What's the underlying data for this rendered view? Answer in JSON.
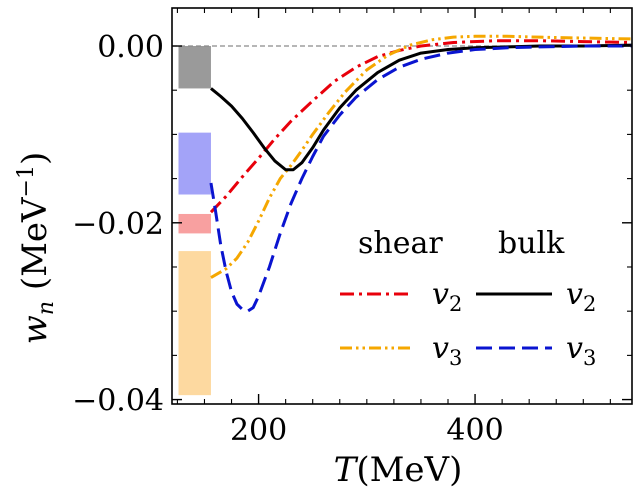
{
  "chart_data": {
    "type": "line",
    "xlabel": "T(MeV)",
    "ylabel": "w_n (MeV^-1)",
    "xlim": [
      120,
      545
    ],
    "ylim": [
      -0.0405,
      0.0043
    ],
    "xticks": [
      200,
      400
    ],
    "xtick_labels": [
      "200",
      "400"
    ],
    "yticks": [
      0.0,
      -0.02,
      -0.04
    ],
    "ytick_labels": [
      "0.00",
      "−0.02",
      "−0.04"
    ],
    "zero_line": true,
    "legend": {
      "placement": "lower-right",
      "headers": [
        "shear",
        "bulk"
      ],
      "entries": [
        {
          "series": "shear_v2",
          "label": "v2"
        },
        {
          "series": "bulk_v2",
          "label": "v2"
        },
        {
          "series": "shear_v3",
          "label": "v3"
        },
        {
          "series": "bulk_v3",
          "label": "v3"
        }
      ]
    },
    "bands": [
      {
        "name": "grey-band",
        "x": [
          126,
          156
        ],
        "y": [
          -0.0048,
          0.0
        ],
        "color": "#9a9a9a"
      },
      {
        "name": "blue-band",
        "x": [
          126,
          156
        ],
        "y": [
          -0.0168,
          -0.0098
        ],
        "color": "#a3a3f8"
      },
      {
        "name": "red-band",
        "x": [
          126,
          156
        ],
        "y": [
          -0.0212,
          -0.019
        ],
        "color": "#f8a0a0"
      },
      {
        "name": "orange-band",
        "x": [
          126,
          156
        ],
        "y": [
          -0.0395,
          -0.0232
        ],
        "color": "#fdd9a0"
      }
    ],
    "series": [
      {
        "key": "shear_v2",
        "name": "v2",
        "group": "shear",
        "color": "#e8000b",
        "dash": "dashdot",
        "x": [
          156,
          170,
          185,
          200,
          215,
          230,
          250,
          270,
          290,
          310,
          330,
          350,
          380,
          420,
          460,
          500,
          545
        ],
        "y": [
          -0.0188,
          -0.017,
          -0.0148,
          -0.0127,
          -0.0105,
          -0.0085,
          -0.0062,
          -0.004,
          -0.0024,
          -0.0012,
          -0.0005,
          0.0,
          0.0004,
          0.0006,
          0.0006,
          0.0005,
          0.0004
        ]
      },
      {
        "key": "shear_v3",
        "name": "v3",
        "group": "shear",
        "color": "#f5a700",
        "dash": "dashdotdot",
        "x": [
          156,
          170,
          180,
          190,
          200,
          210,
          220,
          230,
          240,
          250,
          265,
          280,
          300,
          320,
          340,
          360,
          380,
          400,
          430,
          460,
          500,
          545
        ],
        "y": [
          -0.0262,
          -0.0252,
          -0.024,
          -0.0222,
          -0.0198,
          -0.0172,
          -0.015,
          -0.0135,
          -0.0118,
          -0.01,
          -0.0075,
          -0.0052,
          -0.0027,
          -0.001,
          0.0001,
          0.0007,
          0.001,
          0.0011,
          0.0011,
          0.001,
          0.0009,
          0.0008
        ]
      },
      {
        "key": "bulk_v2",
        "name": "v2",
        "group": "bulk",
        "color": "#000000",
        "dash": "solid",
        "x": [
          156,
          165,
          175,
          185,
          195,
          205,
          215,
          225,
          232,
          240,
          250,
          260,
          275,
          290,
          310,
          330,
          350,
          375,
          400,
          430,
          460,
          500,
          545
        ],
        "y": [
          -0.0048,
          -0.0057,
          -0.0068,
          -0.0082,
          -0.0098,
          -0.0115,
          -0.013,
          -0.014,
          -0.014,
          -0.0132,
          -0.0115,
          -0.0095,
          -0.007,
          -0.005,
          -0.003,
          -0.0016,
          -0.0008,
          -0.0004,
          -0.0002,
          -0.0001,
          0.0,
          0.0,
          0.0001
        ]
      },
      {
        "key": "bulk_v3",
        "name": "v3",
        "group": "bulk",
        "color": "#0a14d0",
        "dash": "dashed",
        "x": [
          156,
          160,
          165,
          170,
          175,
          180,
          185,
          190,
          195,
          200,
          210,
          220,
          230,
          240,
          250,
          260,
          275,
          290,
          310,
          330,
          350,
          375,
          400,
          430,
          460,
          500,
          545
        ],
        "y": [
          -0.0155,
          -0.0185,
          -0.0225,
          -0.0255,
          -0.0278,
          -0.0292,
          -0.0298,
          -0.03,
          -0.0296,
          -0.0283,
          -0.025,
          -0.0212,
          -0.0178,
          -0.015,
          -0.0125,
          -0.0102,
          -0.0078,
          -0.0058,
          -0.0038,
          -0.0024,
          -0.0015,
          -0.0008,
          -0.0004,
          -0.0002,
          -0.0001,
          0.0,
          0.0
        ]
      }
    ]
  }
}
